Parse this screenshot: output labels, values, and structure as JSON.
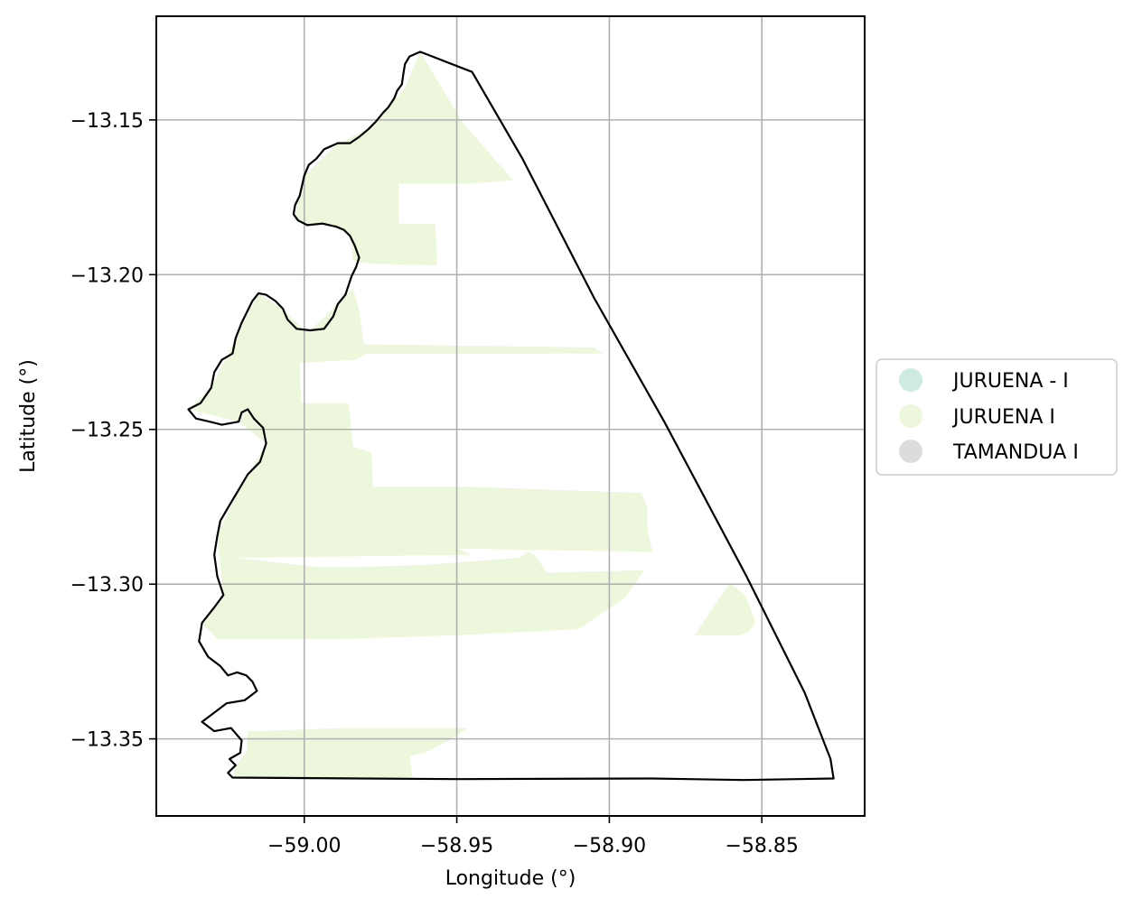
{
  "chart_data": {
    "type": "map",
    "xlabel": "Longitude (°)",
    "ylabel": "Latitude (°)",
    "xlim": [
      -59.0485,
      -58.8163
    ],
    "ylim": [
      -13.3749,
      -13.1165
    ],
    "xticks": [
      {
        "value": -59.0,
        "label": "−59.00"
      },
      {
        "value": -58.95,
        "label": "−58.95"
      },
      {
        "value": -58.9,
        "label": "−58.90"
      },
      {
        "value": -58.85,
        "label": "−58.85"
      }
    ],
    "yticks": [
      {
        "value": -13.15,
        "label": "−13.15"
      },
      {
        "value": -13.2,
        "label": "−13.20"
      },
      {
        "value": -13.25,
        "label": "−13.25"
      },
      {
        "value": -13.3,
        "label": "−13.30"
      },
      {
        "value": -13.35,
        "label": "−13.35"
      }
    ],
    "grid": true,
    "legend": {
      "placement": "center-right outside",
      "entries": [
        {
          "label": "JURUENA - I",
          "color": "#cdebdf"
        },
        {
          "label": "JURUENA I",
          "color": "#ecf7dc"
        },
        {
          "label": "TAMANDUA I",
          "color": "#dcdcdc"
        }
      ]
    },
    "fill_color": "#ecf7dc",
    "boundary": [
      [
        -58.962,
        -13.128
      ],
      [
        -58.9655,
        -13.1295
      ],
      [
        -58.967,
        -13.132
      ],
      [
        -58.9675,
        -13.135
      ],
      [
        -58.968,
        -13.1385
      ],
      [
        -58.9695,
        -13.1405
      ],
      [
        -58.9705,
        -13.143
      ],
      [
        -58.9715,
        -13.1445
      ],
      [
        -58.9725,
        -13.146
      ],
      [
        -58.974,
        -13.1475
      ],
      [
        -58.9765,
        -13.1505
      ],
      [
        -58.979,
        -13.153
      ],
      [
        -58.982,
        -13.1555
      ],
      [
        -58.985,
        -13.1575
      ],
      [
        -58.989,
        -13.1575
      ],
      [
        -58.9935,
        -13.1595
      ],
      [
        -58.996,
        -13.1625
      ],
      [
        -58.9985,
        -13.1645
      ],
      [
        -59.0,
        -13.168
      ],
      [
        -59.0015,
        -13.1745
      ],
      [
        -59.003,
        -13.1775
      ],
      [
        -59.0035,
        -13.1805
      ],
      [
        -59.002,
        -13.1825
      ],
      [
        -58.999,
        -13.184
      ],
      [
        -58.994,
        -13.1835
      ],
      [
        -58.9895,
        -13.1845
      ],
      [
        -58.987,
        -13.1855
      ],
      [
        -58.985,
        -13.1875
      ],
      [
        -58.9835,
        -13.1905
      ],
      [
        -58.982,
        -13.1945
      ],
      [
        -58.983,
        -13.1975
      ],
      [
        -58.9845,
        -13.2005
      ],
      [
        -58.9855,
        -13.2035
      ],
      [
        -58.9865,
        -13.2065
      ],
      [
        -58.989,
        -13.2095
      ],
      [
        -58.9905,
        -13.2135
      ],
      [
        -58.9935,
        -13.2175
      ],
      [
        -58.998,
        -13.218
      ],
      [
        -59.0025,
        -13.2175
      ],
      [
        -59.0055,
        -13.2145
      ],
      [
        -59.007,
        -13.211
      ],
      [
        -59.0095,
        -13.2085
      ],
      [
        -59.0125,
        -13.2065
      ],
      [
        -59.015,
        -13.206
      ],
      [
        -59.017,
        -13.2085
      ],
      [
        -59.0185,
        -13.2115
      ],
      [
        -59.0205,
        -13.2155
      ],
      [
        -59.0225,
        -13.2205
      ],
      [
        -59.0235,
        -13.2255
      ],
      [
        -59.027,
        -13.2275
      ],
      [
        -59.0295,
        -13.2315
      ],
      [
        -59.0305,
        -13.2365
      ],
      [
        -59.034,
        -13.2415
      ],
      [
        -59.038,
        -13.2435
      ],
      [
        -59.0355,
        -13.2465
      ],
      [
        -59.031,
        -13.2475
      ],
      [
        -59.027,
        -13.2485
      ],
      [
        -59.0215,
        -13.2475
      ],
      [
        -59.0205,
        -13.2445
      ],
      [
        -59.0185,
        -13.2435
      ],
      [
        -59.0165,
        -13.2465
      ],
      [
        -59.0135,
        -13.2495
      ],
      [
        -59.0125,
        -13.2545
      ],
      [
        -59.0145,
        -13.2605
      ],
      [
        -59.0185,
        -13.2645
      ],
      [
        -59.0215,
        -13.2695
      ],
      [
        -59.0245,
        -13.2745
      ],
      [
        -59.0275,
        -13.2795
      ],
      [
        -59.0285,
        -13.2845
      ],
      [
        -59.0295,
        -13.2905
      ],
      [
        -59.0285,
        -13.2975
      ],
      [
        -59.0265,
        -13.3035
      ],
      [
        -59.0295,
        -13.3075
      ],
      [
        -59.0335,
        -13.3125
      ],
      [
        -59.0345,
        -13.3185
      ],
      [
        -59.0315,
        -13.3235
      ],
      [
        -59.0275,
        -13.3265
      ],
      [
        -59.025,
        -13.3295
      ],
      [
        -59.022,
        -13.3285
      ],
      [
        -59.019,
        -13.3295
      ],
      [
        -59.017,
        -13.3315
      ],
      [
        -59.0155,
        -13.3345
      ],
      [
        -59.0195,
        -13.3375
      ],
      [
        -59.0255,
        -13.3385
      ],
      [
        -59.0295,
        -13.3415
      ],
      [
        -59.0335,
        -13.3445
      ],
      [
        -59.0295,
        -13.3475
      ],
      [
        -59.024,
        -13.3465
      ],
      [
        -59.0205,
        -13.3505
      ],
      [
        -59.021,
        -13.3545
      ],
      [
        -59.0245,
        -13.3565
      ],
      [
        -59.0225,
        -13.3585
      ],
      [
        -59.025,
        -13.361
      ],
      [
        -59.0235,
        -13.3625
      ],
      [
        -58.95,
        -13.363
      ],
      [
        -58.886,
        -13.3628
      ],
      [
        -58.856,
        -13.3633
      ],
      [
        -58.8265,
        -13.3628
      ],
      [
        -58.8275,
        -13.3565
      ],
      [
        -58.836,
        -13.335
      ],
      [
        -58.855,
        -13.2975
      ],
      [
        -58.882,
        -13.2475
      ],
      [
        -58.905,
        -13.2075
      ],
      [
        -58.9285,
        -13.1625
      ],
      [
        -58.945,
        -13.1345
      ],
      [
        -58.962,
        -13.128
      ]
    ],
    "fill_regions": [
      [
        [
          -59.0,
          -13.168
        ],
        [
          -58.99,
          -13.1585
        ],
        [
          -58.977,
          -13.1515
        ],
        [
          -58.967,
          -13.1395
        ],
        [
          -58.962,
          -13.128
        ],
        [
          -58.948,
          -13.151
        ],
        [
          -58.9315,
          -13.1695
        ],
        [
          -58.946,
          -13.1705
        ],
        [
          -58.969,
          -13.1705
        ],
        [
          -58.969,
          -13.1835
        ],
        [
          -58.957,
          -13.1835
        ],
        [
          -58.9565,
          -13.197
        ],
        [
          -58.978,
          -13.1965
        ],
        [
          -58.984,
          -13.1955
        ],
        [
          -58.985,
          -13.1875
        ],
        [
          -58.99,
          -13.1845
        ],
        [
          -59.0035,
          -13.1825
        ],
        [
          -59.0015,
          -13.1745
        ]
      ],
      [
        [
          -59.0,
          -13.218
        ],
        [
          -59.007,
          -13.211
        ],
        [
          -59.015,
          -13.206
        ],
        [
          -59.0225,
          -13.2205
        ],
        [
          -59.0305,
          -13.2365
        ],
        [
          -59.038,
          -13.2435
        ],
        [
          -59.0215,
          -13.2475
        ],
        [
          -59.0125,
          -13.2545
        ],
        [
          -59.0215,
          -13.2695
        ],
        [
          -59.0285,
          -13.2845
        ],
        [
          -59.0265,
          -13.3035
        ],
        [
          -59.0335,
          -13.3125
        ],
        [
          -59.0285,
          -13.3178
        ],
        [
          -58.9905,
          -13.3178
        ],
        [
          -58.95,
          -13.3165
        ],
        [
          -58.91,
          -13.3145
        ],
        [
          -58.895,
          -13.3045
        ],
        [
          -58.8885,
          -13.2955
        ],
        [
          -58.9205,
          -13.2963
        ],
        [
          -58.9245,
          -13.2905
        ],
        [
          -58.9265,
          -13.2895
        ],
        [
          -58.9295,
          -13.2915
        ],
        [
          -58.9605,
          -13.2938
        ],
        [
          -58.982,
          -13.2945
        ],
        [
          -58.996,
          -13.2945
        ],
        [
          -59.022,
          -13.2915
        ],
        [
          -58.9455,
          -13.2905
        ],
        [
          -58.9495,
          -13.2885
        ],
        [
          -58.886,
          -13.2895
        ],
        [
          -58.8875,
          -13.2825
        ],
        [
          -58.8875,
          -13.2755
        ],
        [
          -58.8895,
          -13.2705
        ],
        [
          -58.9195,
          -13.2695
        ],
        [
          -58.9455,
          -13.2685
        ],
        [
          -58.9775,
          -13.2685
        ],
        [
          -58.978,
          -13.2575
        ],
        [
          -58.984,
          -13.2555
        ],
        [
          -58.9855,
          -13.2415
        ],
        [
          -59.001,
          -13.2415
        ],
        [
          -59.0015,
          -13.2285
        ],
        [
          -58.9835,
          -13.2275
        ],
        [
          -58.9795,
          -13.2255
        ],
        [
          -58.902,
          -13.2255
        ],
        [
          -58.905,
          -13.2235
        ],
        [
          -58.9805,
          -13.2225
        ],
        [
          -58.982,
          -13.2115
        ],
        [
          -58.984,
          -13.2045
        ],
        [
          -58.998,
          -13.218
        ]
      ],
      [
        [
          -58.872,
          -13.3165
        ],
        [
          -58.8605,
          -13.2995
        ],
        [
          -58.8555,
          -13.3035
        ],
        [
          -58.852,
          -13.3125
        ],
        [
          -58.8545,
          -13.3155
        ],
        [
          -58.857,
          -13.3165
        ]
      ],
      [
        [
          -59.0185,
          -13.3475
        ],
        [
          -59.019,
          -13.3545
        ],
        [
          -59.0225,
          -13.3585
        ],
        [
          -59.0235,
          -13.3625
        ],
        [
          -58.9945,
          -13.3625
        ],
        [
          -58.9645,
          -13.3625
        ],
        [
          -58.9655,
          -13.3555
        ],
        [
          -58.9605,
          -13.3545
        ],
        [
          -58.9525,
          -13.3505
        ],
        [
          -58.9465,
          -13.3465
        ],
        [
          -58.9875,
          -13.3465
        ],
        [
          -59.0155,
          -13.3475
        ]
      ]
    ]
  }
}
